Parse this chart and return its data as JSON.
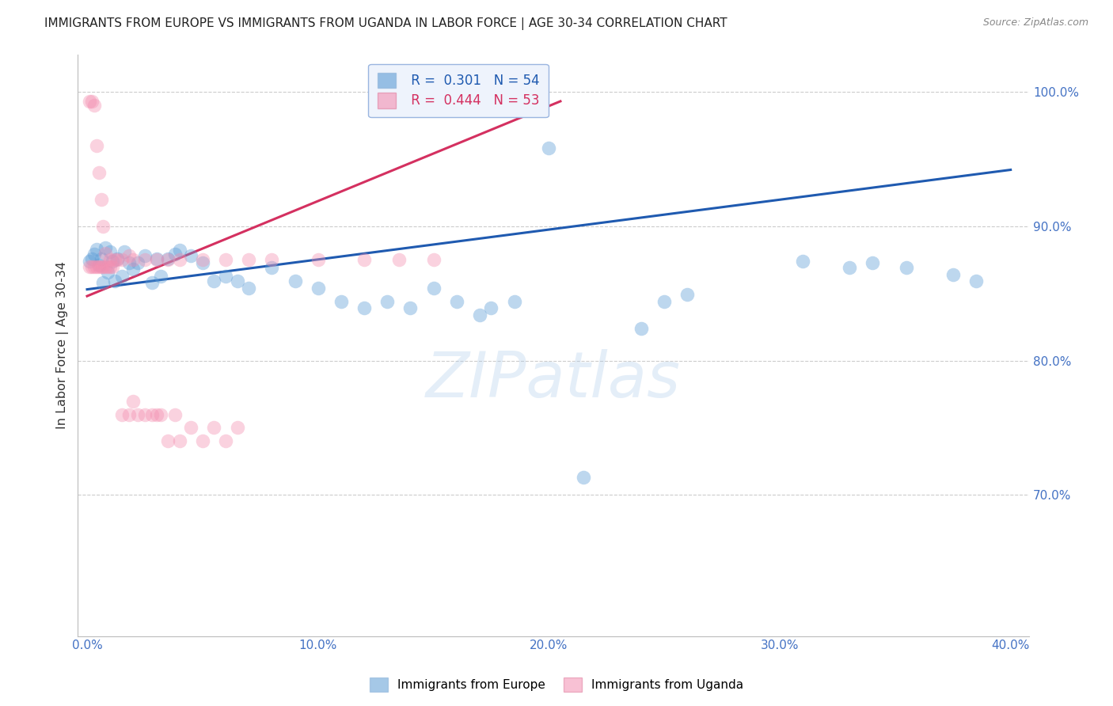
{
  "title": "IMMIGRANTS FROM EUROPE VS IMMIGRANTS FROM UGANDA IN LABOR FORCE | AGE 30-34 CORRELATION CHART",
  "source": "Source: ZipAtlas.com",
  "ylabel": "In Labor Force | Age 30-34",
  "xlim": [
    -0.004,
    0.408
  ],
  "ylim": [
    0.595,
    1.028
  ],
  "xtick_values": [
    0.0,
    0.1,
    0.2,
    0.3,
    0.4
  ],
  "ytick_values": [
    0.7,
    0.8,
    0.9,
    1.0
  ],
  "title_color": "#222222",
  "source_color": "#888888",
  "axis_tick_color": "#4472c4",
  "blue_dot_color": "#5b9bd5",
  "pink_dot_color": "#f48fb1",
  "blue_line_color": "#1f5ab0",
  "pink_line_color": "#d43060",
  "legend_bg": "#eef3fc",
  "legend_border": "#9ab5e0",
  "blue_R": "0.301",
  "blue_N": "54",
  "pink_R": "0.444",
  "pink_N": "53",
  "watermark": "ZIPatlas",
  "blue_trendline": [
    [
      0.0,
      0.4
    ],
    [
      0.853,
      0.942
    ]
  ],
  "pink_trendline": [
    [
      0.0,
      0.205
    ],
    [
      0.848,
      0.993
    ]
  ],
  "blue_x": [
    0.001,
    0.002,
    0.003,
    0.004,
    0.005,
    0.006,
    0.007,
    0.008,
    0.009,
    0.01,
    0.011,
    0.012,
    0.013,
    0.015,
    0.016,
    0.018,
    0.02,
    0.022,
    0.025,
    0.028,
    0.03,
    0.032,
    0.035,
    0.038,
    0.04,
    0.045,
    0.05,
    0.055,
    0.06,
    0.065,
    0.07,
    0.08,
    0.09,
    0.1,
    0.11,
    0.12,
    0.13,
    0.14,
    0.15,
    0.16,
    0.17,
    0.175,
    0.185,
    0.2,
    0.215,
    0.24,
    0.25,
    0.26,
    0.31,
    0.33,
    0.34,
    0.355,
    0.375,
    0.385
  ],
  "blue_y": [
    0.874,
    0.876,
    0.879,
    0.883,
    0.871,
    0.876,
    0.858,
    0.884,
    0.866,
    0.881,
    0.874,
    0.859,
    0.876,
    0.863,
    0.881,
    0.873,
    0.868,
    0.873,
    0.878,
    0.858,
    0.876,
    0.863,
    0.876,
    0.879,
    0.882,
    0.878,
    0.873,
    0.859,
    0.863,
    0.859,
    0.854,
    0.869,
    0.859,
    0.854,
    0.844,
    0.839,
    0.844,
    0.839,
    0.854,
    0.844,
    0.834,
    0.839,
    0.844,
    0.958,
    0.713,
    0.824,
    0.844,
    0.849,
    0.874,
    0.869,
    0.873,
    0.869,
    0.864,
    0.859
  ],
  "pink_x": [
    0.001,
    0.001,
    0.002,
    0.002,
    0.003,
    0.003,
    0.004,
    0.004,
    0.005,
    0.005,
    0.006,
    0.006,
    0.007,
    0.007,
    0.008,
    0.008,
    0.009,
    0.01,
    0.01,
    0.011,
    0.012,
    0.013,
    0.015,
    0.018,
    0.02,
    0.025,
    0.03,
    0.035,
    0.04,
    0.05,
    0.06,
    0.07,
    0.08,
    0.1,
    0.12,
    0.135,
    0.15,
    0.02,
    0.025,
    0.03,
    0.035,
    0.04,
    0.05,
    0.06,
    0.015,
    0.018,
    0.022,
    0.028,
    0.032,
    0.038,
    0.045,
    0.055,
    0.065
  ],
  "pink_y": [
    0.993,
    0.87,
    0.993,
    0.87,
    0.99,
    0.87,
    0.96,
    0.87,
    0.94,
    0.87,
    0.92,
    0.87,
    0.9,
    0.87,
    0.88,
    0.87,
    0.87,
    0.87,
    0.875,
    0.87,
    0.875,
    0.875,
    0.875,
    0.878,
    0.875,
    0.875,
    0.875,
    0.875,
    0.875,
    0.875,
    0.875,
    0.875,
    0.875,
    0.875,
    0.875,
    0.875,
    0.875,
    0.77,
    0.76,
    0.76,
    0.74,
    0.74,
    0.74,
    0.74,
    0.76,
    0.76,
    0.76,
    0.76,
    0.76,
    0.76,
    0.75,
    0.75,
    0.75
  ]
}
